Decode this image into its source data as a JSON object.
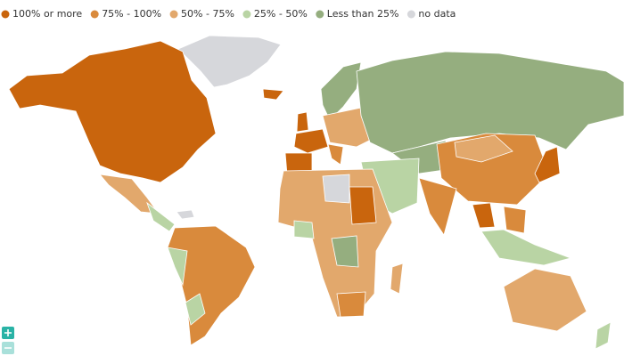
{
  "legend": {
    "items": [
      {
        "label": "100% or more",
        "color": "#c9650d"
      },
      {
        "label": "75% - 100%",
        "color": "#d98a3c"
      },
      {
        "label": "50% - 75%",
        "color": "#e2a86c"
      },
      {
        "label": "25% - 50%",
        "color": "#b9d4a4"
      },
      {
        "label": "Less than 25%",
        "color": "#95ae7f"
      },
      {
        "label": "no data",
        "color": "#d6d7db"
      }
    ]
  }
}
